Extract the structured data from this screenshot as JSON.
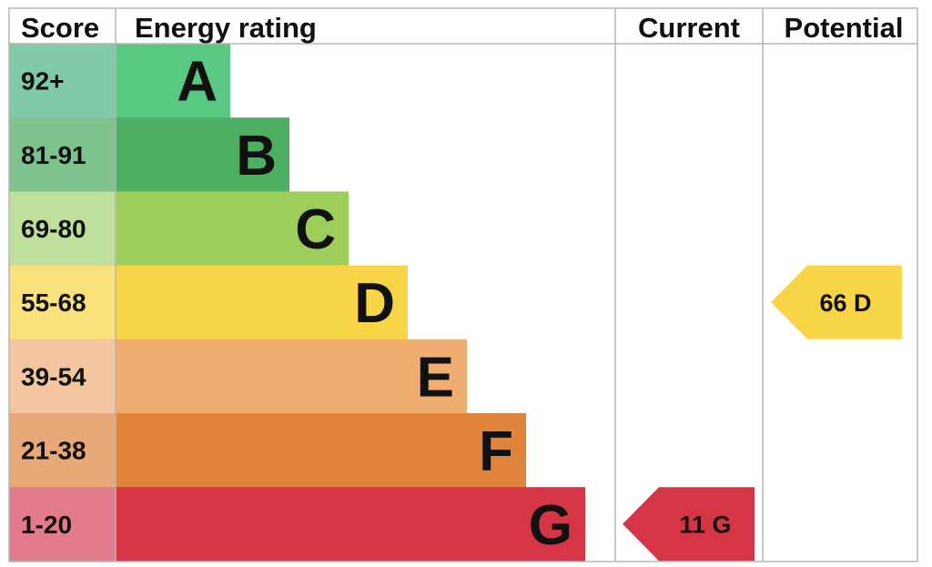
{
  "headers": {
    "score": "Score",
    "rating": "Energy rating",
    "current": "Current",
    "potential": "Potential"
  },
  "chart_data": {
    "type": "bar",
    "title": "",
    "bands": [
      {
        "letter": "A",
        "range": "92+",
        "min": 92,
        "max": null,
        "color": "#59c882",
        "light": "#80c9a9"
      },
      {
        "letter": "B",
        "range": "81-91",
        "min": 81,
        "max": 91,
        "color": "#4caf62",
        "light": "#7ec28e"
      },
      {
        "letter": "C",
        "range": "69-80",
        "min": 69,
        "max": 80,
        "color": "#9dce5b",
        "light": "#bfe09a"
      },
      {
        "letter": "D",
        "range": "55-68",
        "min": 55,
        "max": 68,
        "color": "#f7d546",
        "light": "#fae27a"
      },
      {
        "letter": "E",
        "range": "39-54",
        "min": 39,
        "max": 54,
        "color": "#efad6f",
        "light": "#f3c6a0"
      },
      {
        "letter": "F",
        "range": "21-38",
        "min": 21,
        "max": 38,
        "color": "#e0843b",
        "light": "#e9a877"
      },
      {
        "letter": "G",
        "range": "1-20",
        "min": 1,
        "max": 20,
        "color": "#d63545",
        "light": "#e27b8c"
      }
    ],
    "current": {
      "value": 11,
      "letter": "G",
      "label": "11 G",
      "color": "#d63545"
    },
    "potential": {
      "value": 66,
      "letter": "D",
      "label": "66 D",
      "color": "#f7d546"
    }
  }
}
